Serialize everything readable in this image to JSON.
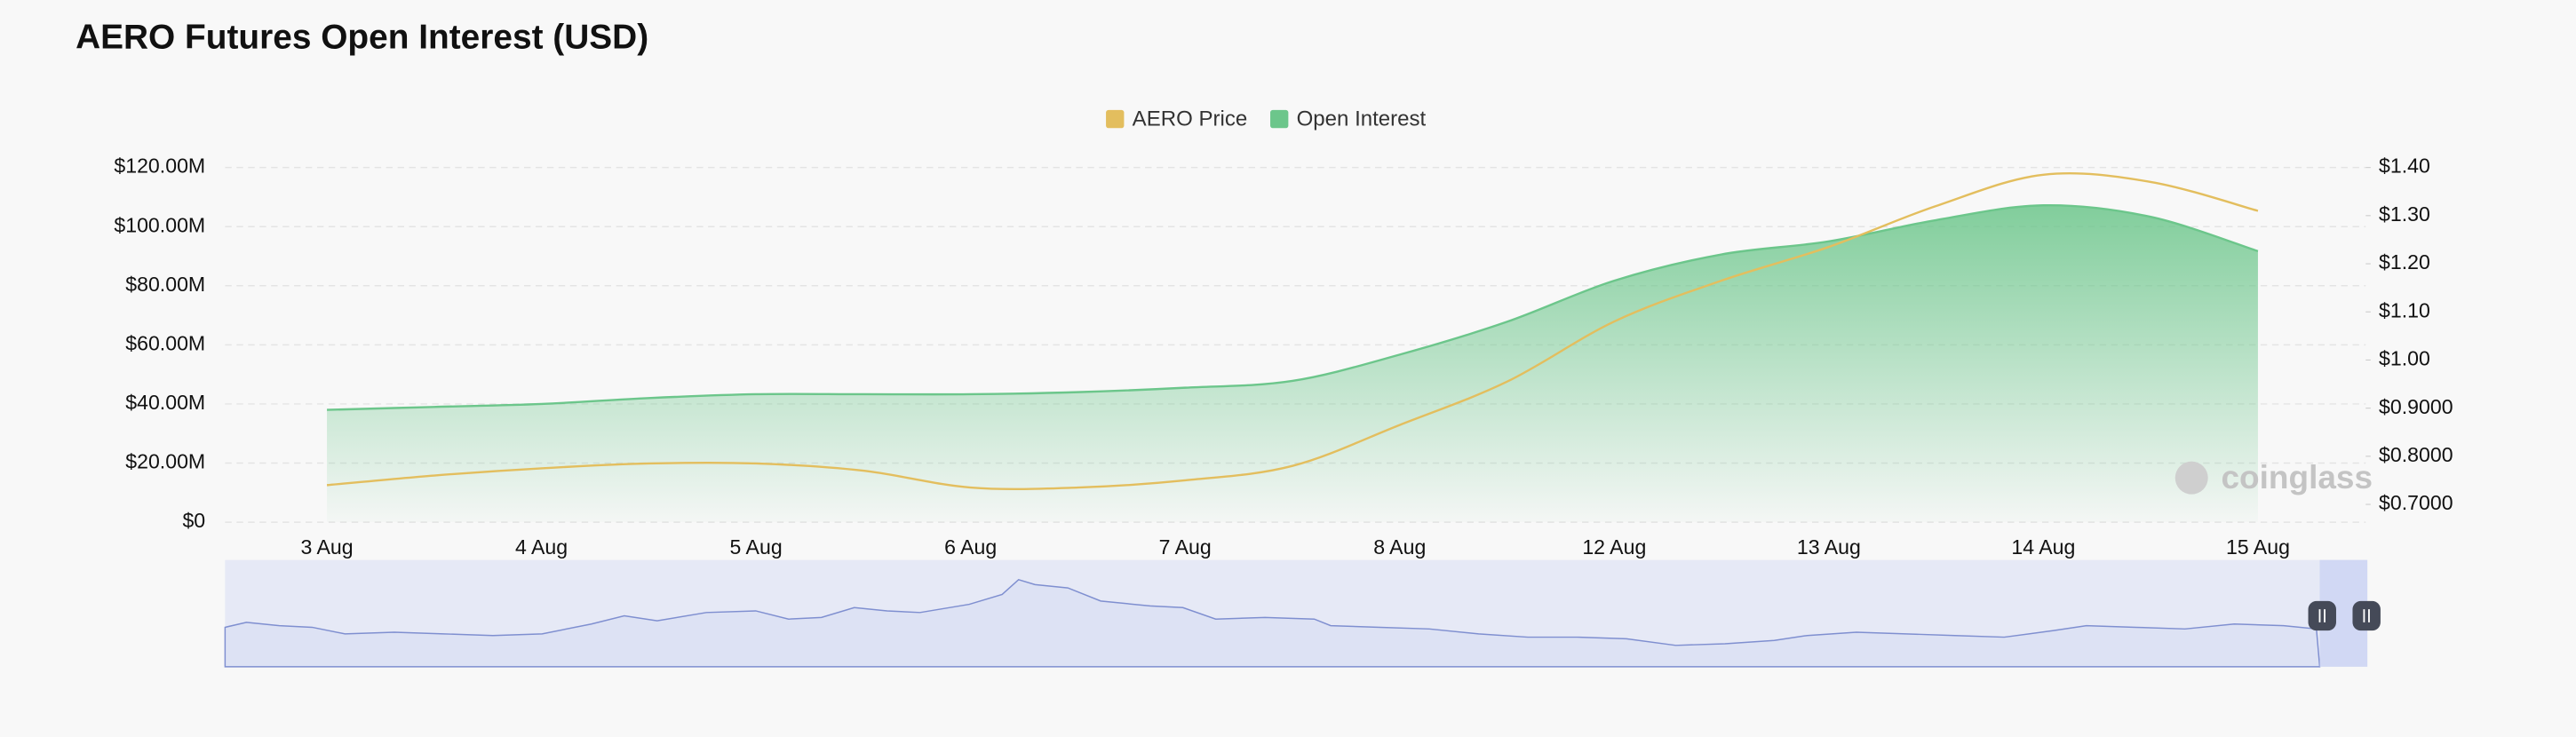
{
  "chart_data": {
    "type": "line",
    "title": "AERO Futures Open Interest (USD)",
    "categories": [
      "3 Aug",
      null,
      "4 Aug",
      null,
      "5 Aug",
      null,
      "6 Aug",
      null,
      "7 Aug",
      null,
      "8 Aug",
      null,
      "12 Aug",
      null,
      "13 Aug",
      null,
      "14 Aug",
      null,
      "15 Aug"
    ],
    "series": [
      {
        "name": "AERO Price",
        "color": "#e3be5e",
        "axis": "y2",
        "area": false,
        "values": [
          0.74,
          0.76,
          0.775,
          0.785,
          0.785,
          0.77,
          0.735,
          0.735,
          0.75,
          0.78,
          0.865,
          0.955,
          1.08,
          1.165,
          1.235,
          1.32,
          1.385,
          1.37,
          1.31
        ]
      },
      {
        "name": "Open Interest",
        "color": "#6cc68b",
        "area": true,
        "values": [
          38000000,
          39000000,
          40000000,
          42000000,
          43300000,
          43300000,
          43300000,
          44000000,
          45500000,
          47800000,
          56700000,
          67800000,
          81700000,
          90600000,
          95000000,
          102200000,
          107200000,
          103300000,
          91700000
        ]
      }
    ],
    "ylim": [
      0,
      120000000
    ],
    "yticks": [
      {
        "value": 0,
        "label": "$0"
      },
      {
        "value": 20000000,
        "label": "$20.00M"
      },
      {
        "value": 40000000,
        "label": "$40.00M"
      },
      {
        "value": 60000000,
        "label": "$60.00M"
      },
      {
        "value": 80000000,
        "label": "$80.00M"
      },
      {
        "value": 100000000,
        "label": "$100.00M"
      },
      {
        "value": 120000000,
        "label": "$120.00M"
      }
    ],
    "y2lim": [
      0.663,
      1.4
    ],
    "y2ticks": [
      {
        "value": 0.7,
        "label": "$0.7000"
      },
      {
        "value": 0.8,
        "label": "$0.8000"
      },
      {
        "value": 0.9,
        "label": "$0.9000"
      },
      {
        "value": 1.0,
        "label": "$1.00"
      },
      {
        "value": 1.1,
        "label": "$1.10"
      },
      {
        "value": 1.2,
        "label": "$1.20"
      },
      {
        "value": 1.3,
        "label": "$1.30"
      },
      {
        "value": 1.4,
        "label": "$1.40"
      }
    ],
    "grid": true,
    "legend": "top",
    "watermark": "coinglass"
  }
}
